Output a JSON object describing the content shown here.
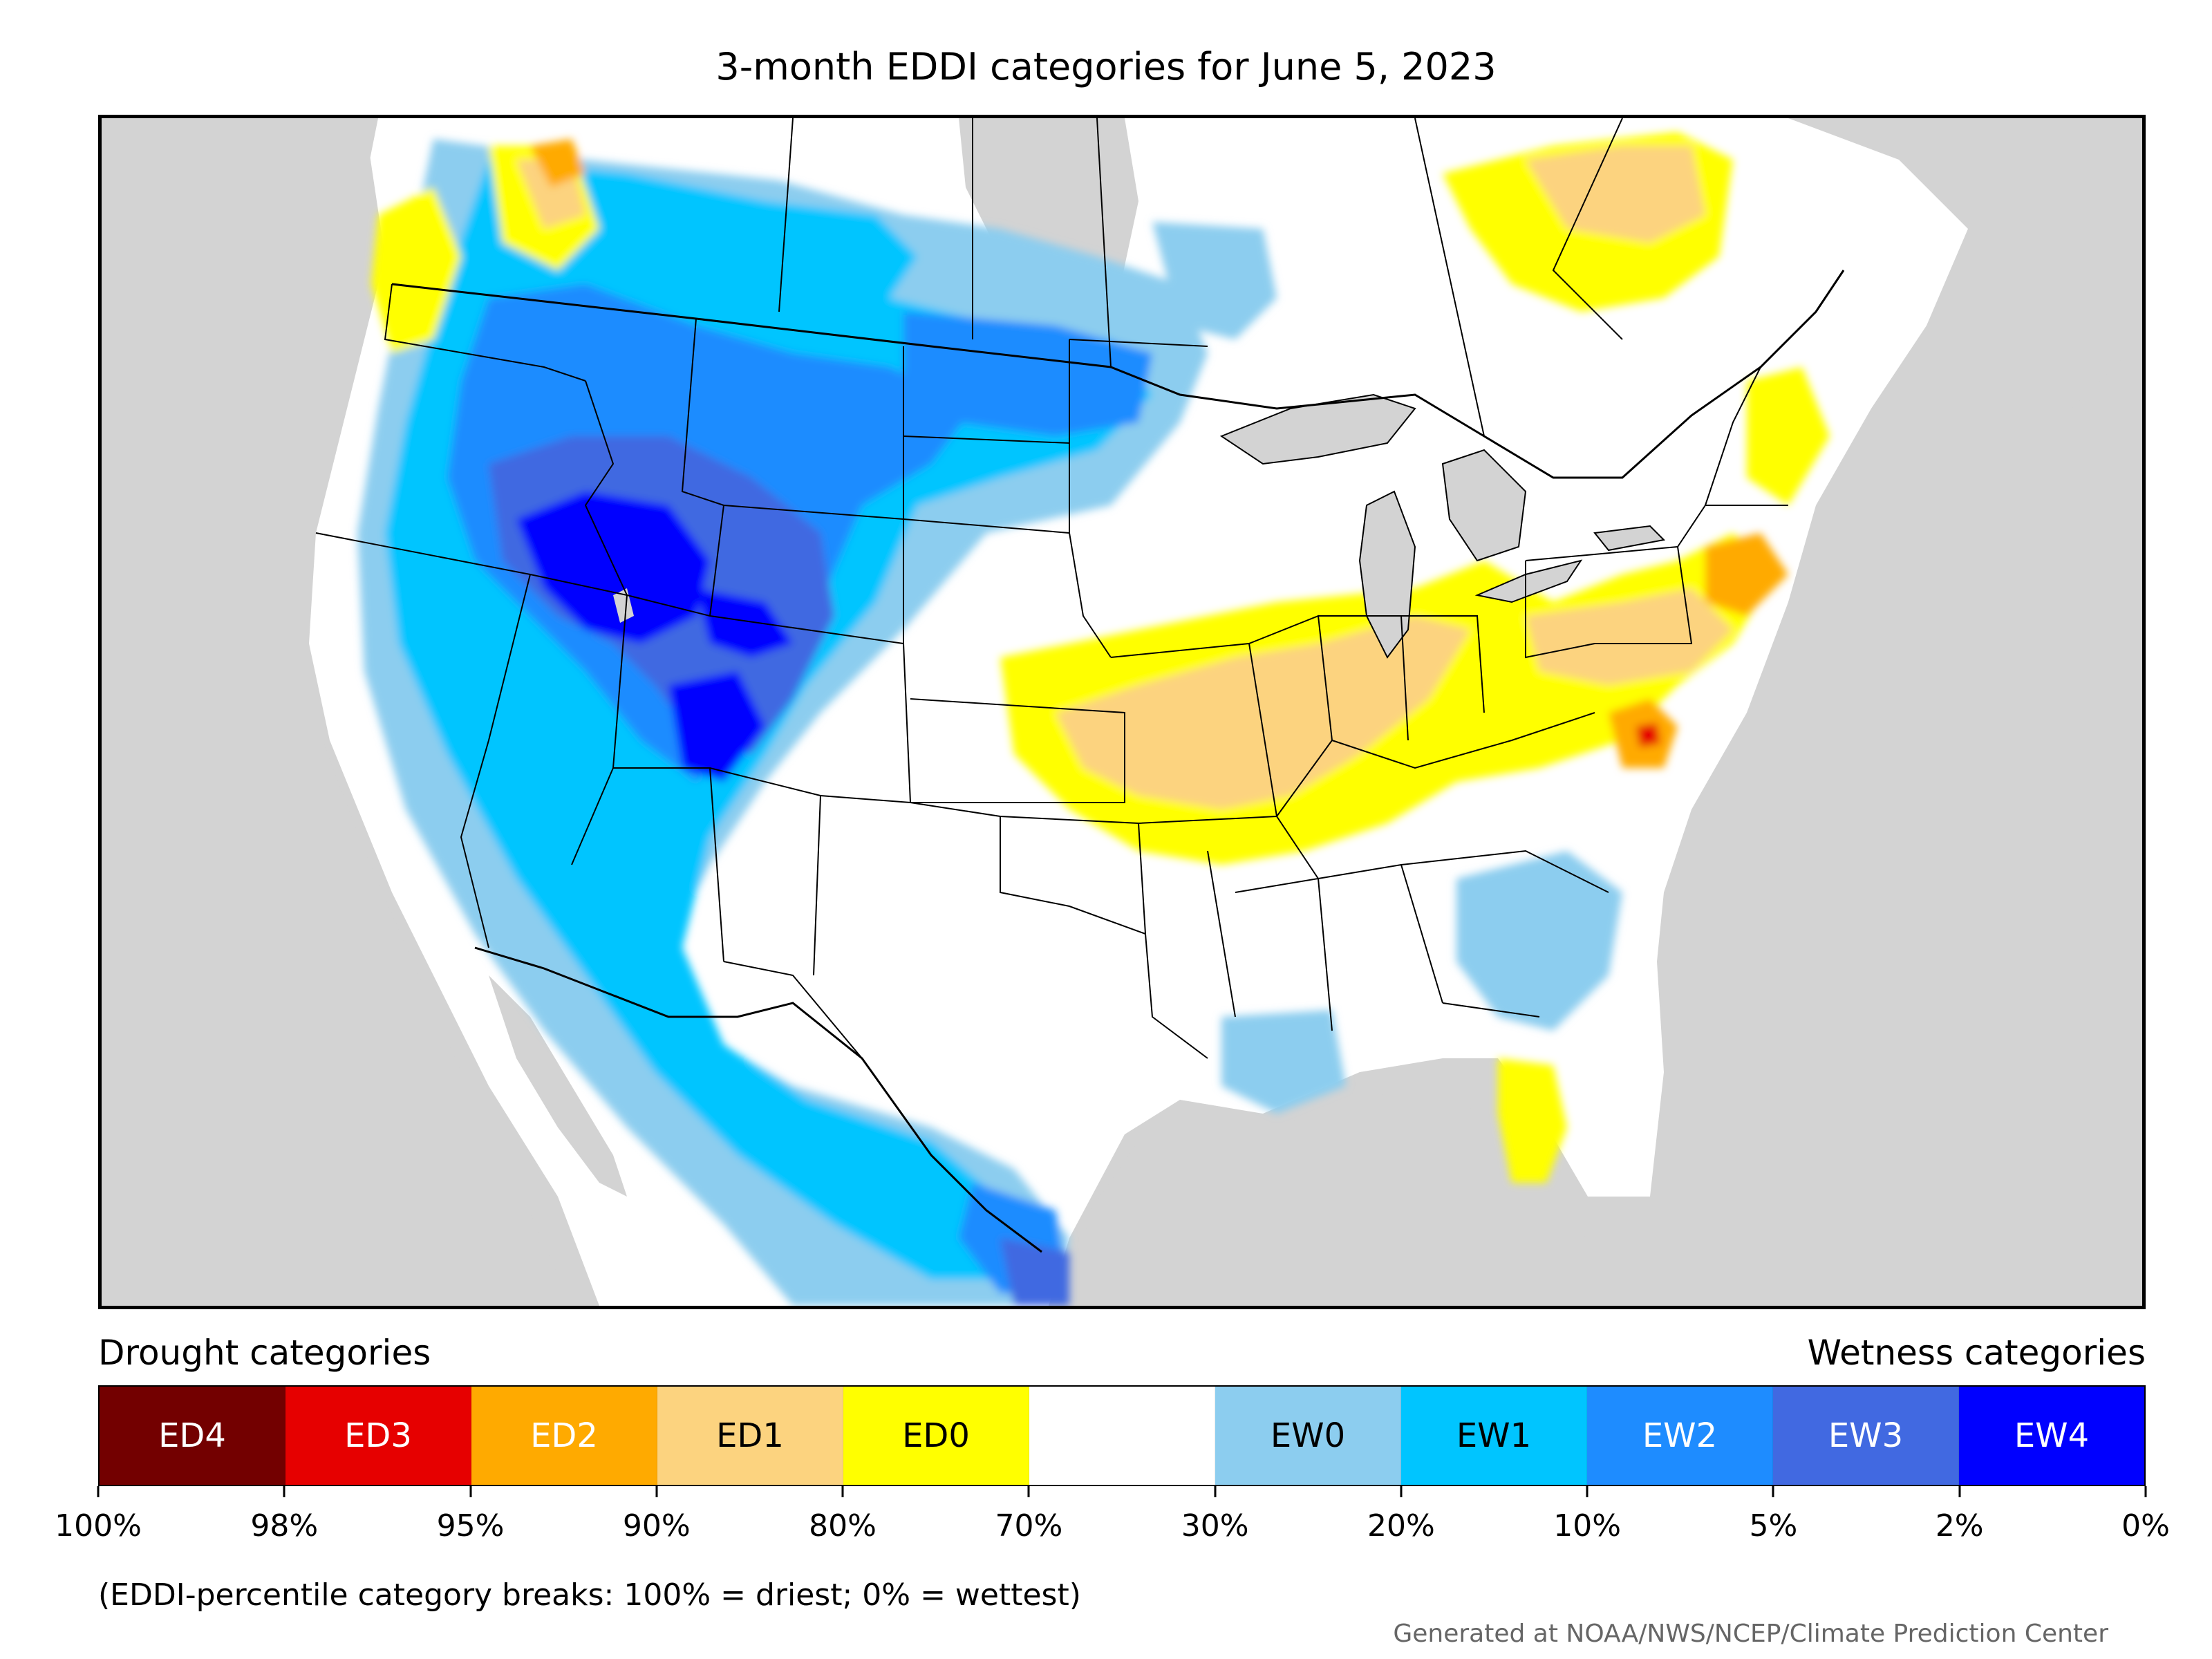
{
  "title": "3-month EDDI categories for June 5, 2023",
  "colors": {
    "land_background": "#d3d3d3",
    "ED4": "#730000",
    "ED3": "#e60000",
    "ED2": "#ffaa00",
    "ED1": "#fcd37f",
    "ED0": "#ffff00",
    "neutral": "#ffffff",
    "EW0": "#8ccdef",
    "EW1": "#00c5ff",
    "EW2": "#1e8cff",
    "EW3": "#4169e1",
    "EW4": "#0000ff"
  },
  "legend": {
    "drought_heading": "Drought categories",
    "wetness_heading": "Wetness categories",
    "categories": [
      {
        "label": "ED4",
        "color": "#730000",
        "text_color": "#ffffff"
      },
      {
        "label": "ED3",
        "color": "#e60000",
        "text_color": "#ffffff"
      },
      {
        "label": "ED2",
        "color": "#ffaa00",
        "text_color": "#ffffff"
      },
      {
        "label": "ED1",
        "color": "#fcd37f",
        "text_color": "#000000"
      },
      {
        "label": "ED0",
        "color": "#ffff00",
        "text_color": "#000000"
      },
      {
        "label": "",
        "color": "#ffffff",
        "text_color": "#000000"
      },
      {
        "label": "EW0",
        "color": "#8ccdef",
        "text_color": "#000000"
      },
      {
        "label": "EW1",
        "color": "#00c5ff",
        "text_color": "#000000"
      },
      {
        "label": "EW2",
        "color": "#1e8cff",
        "text_color": "#ffffff"
      },
      {
        "label": "EW3",
        "color": "#4169e1",
        "text_color": "#ffffff"
      },
      {
        "label": "EW4",
        "color": "#0000ff",
        "text_color": "#ffffff"
      }
    ],
    "ticks": [
      "100%",
      "98%",
      "95%",
      "90%",
      "80%",
      "70%",
      "30%",
      "20%",
      "10%",
      "5%",
      "2%",
      "0%"
    ]
  },
  "note": "(EDDI-percentile category breaks: 100% = driest; 0% = wettest)",
  "credit": "Generated at NOAA/NWS/NCEP/Climate Prediction Center"
}
